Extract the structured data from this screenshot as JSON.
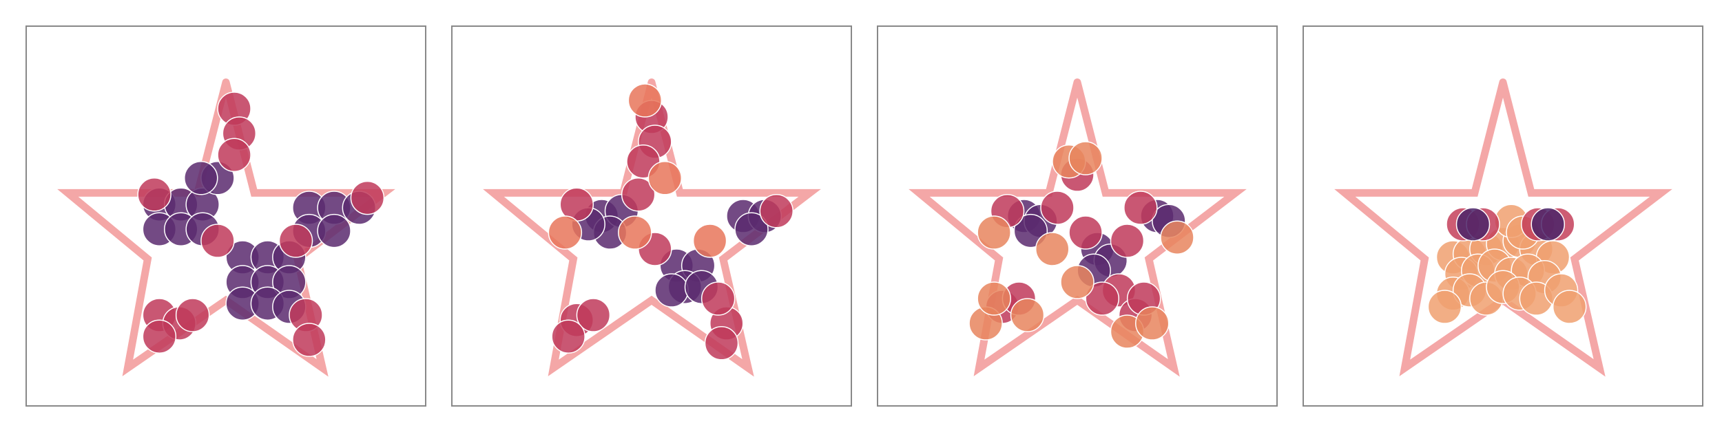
{
  "chart_data": [
    {
      "type": "scatter",
      "xlim": [
        -1.2,
        1.2
      ],
      "ylim": [
        -1.1,
        1.2
      ],
      "series": [
        {
          "style": "line",
          "color": "#f4a7a7",
          "x": [
            0,
            0.17,
            0.95,
            0.43,
            0.58,
            0,
            -0.59,
            -0.47,
            -0.95,
            -0.17,
            0
          ],
          "values": [
            0.86,
            0.19,
            0.19,
            -0.21,
            -0.87,
            -0.46,
            -0.87,
            -0.21,
            0.19,
            0.19,
            0.86
          ]
        },
        {
          "style": "points",
          "color": "#5b2a6e",
          "x": [
            0.1,
            0.25,
            0.38,
            0.1,
            0.25,
            0.38,
            0.1,
            0.25,
            0.38,
            -0.4,
            -0.27,
            -0.14,
            -0.4,
            -0.27,
            -0.14,
            -0.05,
            -0.15,
            0.5,
            0.65,
            0.8,
            0.5,
            0.65
          ],
          "values": [
            -0.2,
            -0.2,
            -0.2,
            -0.35,
            -0.35,
            -0.35,
            -0.48,
            -0.48,
            -0.5,
            0.12,
            0.12,
            0.12,
            -0.03,
            -0.03,
            -0.03,
            0.28,
            0.28,
            0.1,
            0.1,
            0.1,
            -0.04,
            -0.04
          ]
        },
        {
          "style": "points",
          "color": "#c0395a",
          "x": [
            0.05,
            0.08,
            0.05,
            -0.4,
            -0.28,
            -0.4,
            -0.2,
            0.48,
            0.5,
            -0.43,
            0.85,
            0.42,
            -0.05
          ],
          "values": [
            0.7,
            0.55,
            0.42,
            -0.55,
            -0.6,
            -0.68,
            -0.55,
            -0.55,
            -0.7,
            0.18,
            0.16,
            -0.1,
            -0.1
          ]
        }
      ]
    },
    {
      "type": "scatter",
      "xlim": [
        -1.2,
        1.2
      ],
      "ylim": [
        -1.1,
        1.2
      ],
      "series": [
        {
          "style": "line",
          "color": "#f4a7a7",
          "x": [
            0,
            0.17,
            0.95,
            0.43,
            0.58,
            0,
            -0.59,
            -0.47,
            -0.95,
            -0.17,
            0
          ],
          "values": [
            0.86,
            0.19,
            0.19,
            -0.21,
            -0.87,
            -0.46,
            -0.87,
            -0.21,
            0.19,
            0.19,
            0.86
          ]
        },
        {
          "style": "points",
          "color": "#5b2a6e",
          "x": [
            -0.3,
            -0.18,
            -0.25,
            -0.38,
            0.15,
            0.28,
            0.2,
            0.12,
            0.3,
            0.55,
            0.68,
            0.6
          ],
          "values": [
            0.05,
            0.08,
            -0.05,
            0.0,
            -0.25,
            -0.25,
            -0.38,
            -0.4,
            -0.38,
            0.05,
            0.05,
            -0.03
          ]
        },
        {
          "style": "points",
          "color": "#c0395a",
          "x": [
            0.0,
            0.02,
            -0.05,
            -0.45,
            -0.35,
            -0.5,
            0.45,
            0.4,
            0.42,
            -0.08,
            0.75,
            -0.45,
            0.02
          ],
          "values": [
            0.65,
            0.5,
            0.38,
            -0.58,
            -0.55,
            -0.68,
            -0.6,
            -0.45,
            -0.72,
            0.18,
            0.08,
            0.12,
            -0.15
          ]
        },
        {
          "style": "points",
          "color": "#e8755a",
          "x": [
            -0.04,
            0.08,
            -0.52,
            0.35,
            -0.1
          ],
          "values": [
            0.75,
            0.28,
            -0.05,
            -0.1,
            -0.05
          ]
        }
      ]
    },
    {
      "type": "scatter",
      "xlim": [
        -1.2,
        1.2
      ],
      "ylim": [
        -1.1,
        1.2
      ],
      "series": [
        {
          "style": "line",
          "color": "#f4a7a7",
          "x": [
            0,
            0.17,
            0.95,
            0.43,
            0.58,
            0,
            -0.59,
            -0.47,
            -0.95,
            -0.17,
            0
          ],
          "values": [
            0.86,
            0.19,
            0.19,
            -0.21,
            -0.87,
            -0.46,
            -0.87,
            -0.21,
            0.19,
            0.19,
            0.86
          ]
        },
        {
          "style": "points",
          "color": "#5b2a6e",
          "x": [
            -0.32,
            -0.22,
            -0.28,
            0.48,
            0.55,
            0.12,
            0.2,
            0.1
          ],
          "values": [
            0.05,
            0.02,
            -0.04,
            0.05,
            0.02,
            -0.15,
            -0.22,
            -0.28
          ]
        },
        {
          "style": "points",
          "color": "#c0395a",
          "x": [
            -0.42,
            -0.12,
            0.0,
            0.05,
            0.3,
            0.38,
            0.25,
            -0.45,
            -0.35,
            0.35,
            0.4,
            0.15
          ],
          "values": [
            0.08,
            0.1,
            0.3,
            -0.05,
            -0.1,
            0.1,
            -0.4,
            -0.5,
            -0.45,
            -0.55,
            -0.45,
            -0.45
          ]
        },
        {
          "style": "points",
          "color": "#e8855e",
          "x": [
            -0.5,
            -0.55,
            -0.05,
            0.05,
            0.6,
            -0.3,
            -0.5,
            0.3,
            0.45,
            -0.15,
            0.0
          ],
          "values": [
            -0.05,
            -0.6,
            0.38,
            0.4,
            -0.08,
            -0.55,
            -0.45,
            -0.65,
            -0.6,
            -0.15,
            -0.35
          ]
        }
      ]
    },
    {
      "type": "scatter",
      "xlim": [
        -1.2,
        1.2
      ],
      "ylim": [
        -1.1,
        1.2
      ],
      "series": [
        {
          "style": "line",
          "color": "#f4a7a7",
          "x": [
            0,
            0.17,
            0.95,
            0.43,
            0.58,
            0,
            -0.59,
            -0.47,
            -0.95,
            -0.17,
            0
          ],
          "values": [
            0.86,
            0.19,
            0.19,
            -0.21,
            -0.87,
            -0.46,
            -0.87,
            -0.21,
            0.19,
            0.19,
            0.86
          ]
        },
        {
          "style": "points",
          "color": "#f0a070",
          "x": [
            -0.3,
            -0.2,
            -0.1,
            0.0,
            0.1,
            0.2,
            0.3,
            -0.25,
            -0.15,
            -0.05,
            0.05,
            0.15,
            0.25,
            -0.3,
            -0.2,
            -0.1,
            0.0,
            0.1,
            0.2,
            0.35,
            -0.35,
            0.4,
            0.05,
            0.12
          ],
          "values": [
            -0.2,
            -0.18,
            -0.15,
            -0.12,
            -0.1,
            -0.15,
            -0.2,
            -0.3,
            -0.28,
            -0.25,
            -0.3,
            -0.28,
            -0.32,
            -0.42,
            -0.4,
            -0.45,
            -0.38,
            -0.42,
            -0.45,
            -0.4,
            -0.5,
            -0.5,
            0.02,
            -0.05
          ]
        },
        {
          "style": "points",
          "color": "#c4405a",
          "x": [
            -0.24,
            -0.12,
            0.21,
            0.33
          ],
          "values": [
            0.0,
            0.0,
            0.0,
            0.0
          ]
        },
        {
          "style": "points",
          "color": "#4a2368",
          "x": [
            -0.18,
            0.27
          ],
          "values": [
            0.0,
            0.0
          ]
        }
      ]
    }
  ]
}
